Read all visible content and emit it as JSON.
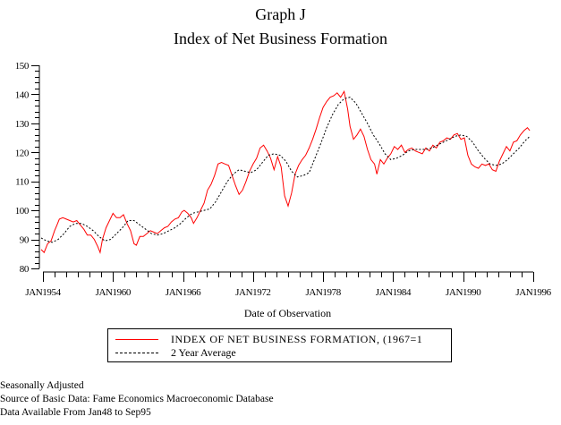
{
  "chart_data": {
    "type": "line",
    "title": "Graph J",
    "subtitle": "Index of Net Business Formation",
    "xlabel": "Date of Observation",
    "ylabel": "",
    "xlim": [
      1954,
      1996
    ],
    "ylim": [
      80,
      150
    ],
    "grid": false,
    "legend_position": "bottom",
    "y_ticks": [
      80,
      90,
      100,
      110,
      120,
      130,
      140,
      150
    ],
    "y_tick_labels": [
      "80",
      "90",
      "100",
      "110",
      "120",
      "130",
      "140",
      "150"
    ],
    "x_ticks": [
      1954,
      1960,
      1966,
      1972,
      1978,
      1984,
      1990,
      1996
    ],
    "x_tick_labels": [
      "JAN1954",
      "JAN1960",
      "JAN1966",
      "JAN1972",
      "JAN1978",
      "JAN1984",
      "JAN1990",
      "JAN1996"
    ],
    "series": [
      {
        "name": "INDEX OF NET BUSINESS FORMATION, (1967=1",
        "style": "solid",
        "color": "#ff0000",
        "x": [
          1953.85,
          1954.1,
          1954.4,
          1954.7,
          1955.0,
          1955.2,
          1955.4,
          1955.7,
          1956.0,
          1956.3,
          1956.6,
          1956.9,
          1957.2,
          1957.5,
          1957.8,
          1958.1,
          1958.4,
          1958.7,
          1958.9,
          1959.1,
          1959.4,
          1959.7,
          1960.0,
          1960.3,
          1960.6,
          1960.9,
          1961.2,
          1961.5,
          1961.8,
          1962.0,
          1962.3,
          1962.6,
          1962.9,
          1963.2,
          1963.5,
          1963.8,
          1964.1,
          1964.4,
          1964.7,
          1965.0,
          1965.3,
          1965.6,
          1965.9,
          1966.1,
          1966.4,
          1966.7,
          1966.9,
          1967.2,
          1967.5,
          1967.8,
          1968.1,
          1968.4,
          1968.7,
          1969.0,
          1969.3,
          1969.6,
          1969.9,
          1970.2,
          1970.5,
          1970.8,
          1971.1,
          1971.4,
          1971.7,
          1972.0,
          1972.3,
          1972.6,
          1972.9,
          1973.2,
          1973.5,
          1973.8,
          1974.1,
          1974.4,
          1974.7,
          1975.0,
          1975.3,
          1975.6,
          1975.9,
          1976.2,
          1976.5,
          1976.8,
          1977.1,
          1977.4,
          1977.7,
          1978.0,
          1978.3,
          1978.6,
          1978.9,
          1979.2,
          1979.5,
          1979.8,
          1980.1,
          1980.3,
          1980.6,
          1980.9,
          1981.2,
          1981.5,
          1981.8,
          1982.1,
          1982.4,
          1982.6,
          1982.9,
          1983.2,
          1983.5,
          1983.8,
          1984.1,
          1984.4,
          1984.7,
          1985.0,
          1985.3,
          1985.6,
          1985.9,
          1986.2,
          1986.5,
          1986.8,
          1987.1,
          1987.4,
          1987.7,
          1988.0,
          1988.3,
          1988.6,
          1988.9,
          1989.2,
          1989.5,
          1989.8,
          1990.1,
          1990.4,
          1990.7,
          1991.0,
          1991.3,
          1991.6,
          1991.9,
          1992.2,
          1992.5,
          1992.8,
          1993.1,
          1993.4,
          1993.7,
          1994.0,
          1994.3,
          1994.6,
          1994.9,
          1995.2,
          1995.5,
          1995.7
        ],
        "values": [
          86.5,
          85.5,
          88.5,
          89.5,
          93.0,
          95.0,
          97.0,
          97.5,
          97.0,
          96.5,
          96.0,
          96.5,
          95.0,
          93.5,
          91.5,
          91.5,
          90.0,
          87.5,
          85.5,
          90.0,
          94.0,
          96.5,
          99.0,
          97.5,
          97.5,
          98.5,
          95.5,
          93.0,
          88.5,
          88.0,
          91.0,
          91.0,
          92.0,
          93.0,
          92.5,
          92.0,
          93.0,
          94.0,
          94.5,
          96.0,
          97.0,
          97.5,
          99.5,
          100.0,
          99.0,
          97.5,
          95.5,
          97.5,
          100.0,
          102.5,
          107.0,
          109.0,
          112.0,
          116.0,
          116.5,
          116.0,
          115.5,
          112.0,
          108.5,
          105.5,
          107.0,
          110.0,
          113.5,
          116.0,
          118.0,
          121.5,
          122.5,
          120.5,
          118.0,
          114.0,
          118.5,
          115.0,
          105.0,
          101.5,
          106.0,
          112.5,
          115.5,
          117.5,
          119.0,
          121.5,
          124.5,
          128.0,
          132.0,
          135.5,
          137.5,
          139.0,
          139.5,
          140.5,
          139.0,
          141.0,
          135.0,
          129.0,
          124.5,
          126.0,
          128.0,
          125.5,
          121.0,
          117.5,
          116.0,
          112.5,
          117.5,
          116.0,
          118.0,
          119.5,
          122.0,
          121.0,
          122.5,
          120.0,
          121.0,
          121.5,
          120.5,
          120.0,
          119.5,
          121.5,
          120.5,
          122.5,
          121.5,
          123.5,
          124.0,
          125.0,
          124.5,
          126.0,
          126.5,
          124.5,
          125.0,
          119.0,
          116.0,
          115.0,
          114.5,
          116.0,
          115.5,
          116.0,
          114.0,
          113.5,
          117.0,
          119.5,
          122.0,
          120.5,
          123.5,
          124.0,
          126.0,
          127.5,
          128.5,
          127.5
        ],
        "note": "values read approximately from the plot"
      },
      {
        "name": "2 Year Average",
        "style": "dashed",
        "color": "#000000",
        "x": [
          1953.85,
          1954.3,
          1954.8,
          1955.3,
          1955.8,
          1956.3,
          1956.8,
          1957.3,
          1957.8,
          1958.3,
          1958.8,
          1959.3,
          1959.8,
          1960.3,
          1960.8,
          1961.3,
          1961.8,
          1962.3,
          1962.8,
          1963.3,
          1963.8,
          1964.3,
          1964.8,
          1965.3,
          1965.8,
          1966.3,
          1966.8,
          1967.3,
          1967.8,
          1968.3,
          1968.8,
          1969.3,
          1969.8,
          1970.3,
          1970.8,
          1971.3,
          1971.8,
          1972.3,
          1972.8,
          1973.3,
          1973.8,
          1974.3,
          1974.8,
          1975.3,
          1975.8,
          1976.3,
          1976.8,
          1977.3,
          1977.8,
          1978.3,
          1978.8,
          1979.3,
          1979.8,
          1980.3,
          1980.8,
          1981.3,
          1981.8,
          1982.3,
          1982.8,
          1983.3,
          1983.8,
          1984.3,
          1984.8,
          1985.3,
          1985.8,
          1986.3,
          1986.8,
          1987.3,
          1987.8,
          1988.3,
          1988.8,
          1989.3,
          1989.8,
          1990.3,
          1990.8,
          1991.3,
          1991.8,
          1992.3,
          1992.8,
          1993.3,
          1993.8,
          1994.3,
          1994.8,
          1995.3,
          1995.7
        ],
        "values": [
          90.5,
          89.5,
          89.0,
          90.0,
          92.0,
          94.5,
          95.5,
          95.5,
          94.5,
          93.0,
          91.0,
          89.5,
          90.0,
          92.0,
          94.0,
          96.5,
          96.5,
          95.0,
          93.5,
          92.0,
          91.5,
          92.0,
          93.0,
          94.0,
          95.5,
          97.5,
          99.0,
          99.5,
          100.0,
          100.5,
          103.0,
          106.5,
          110.0,
          112.5,
          114.0,
          113.5,
          113.0,
          114.0,
          116.5,
          119.0,
          119.5,
          119.0,
          117.0,
          113.5,
          111.5,
          112.0,
          113.0,
          118.0,
          123.0,
          128.5,
          133.0,
          136.5,
          138.5,
          139.0,
          137.0,
          133.5,
          130.0,
          126.0,
          123.0,
          119.5,
          117.5,
          118.0,
          119.0,
          120.5,
          121.0,
          121.0,
          121.0,
          121.5,
          122.5,
          123.5,
          124.5,
          125.5,
          126.0,
          125.5,
          123.5,
          120.5,
          118.0,
          116.0,
          115.5,
          116.0,
          117.5,
          119.5,
          121.5,
          124.0,
          125.5
        ],
        "note": "values read approximately from the plot"
      }
    ]
  },
  "header": {
    "title": "Graph J",
    "subtitle": "Index of Net Business Formation"
  },
  "axis": {
    "x_title": "Date of Observation"
  },
  "legend": {
    "items": [
      {
        "label": "INDEX OF NET BUSINESS FORMATION, (1967=1",
        "style": "solid",
        "color": "#ff0000"
      },
      {
        "label": "2 Year Average",
        "style": "dashed",
        "color": "#000000"
      }
    ]
  },
  "footnotes": [
    "Seasonally Adjusted",
    "Source of Basic Data: Fame Economics Macroeconomic Database",
    "Data Available From Jan48 to Sep95"
  ]
}
